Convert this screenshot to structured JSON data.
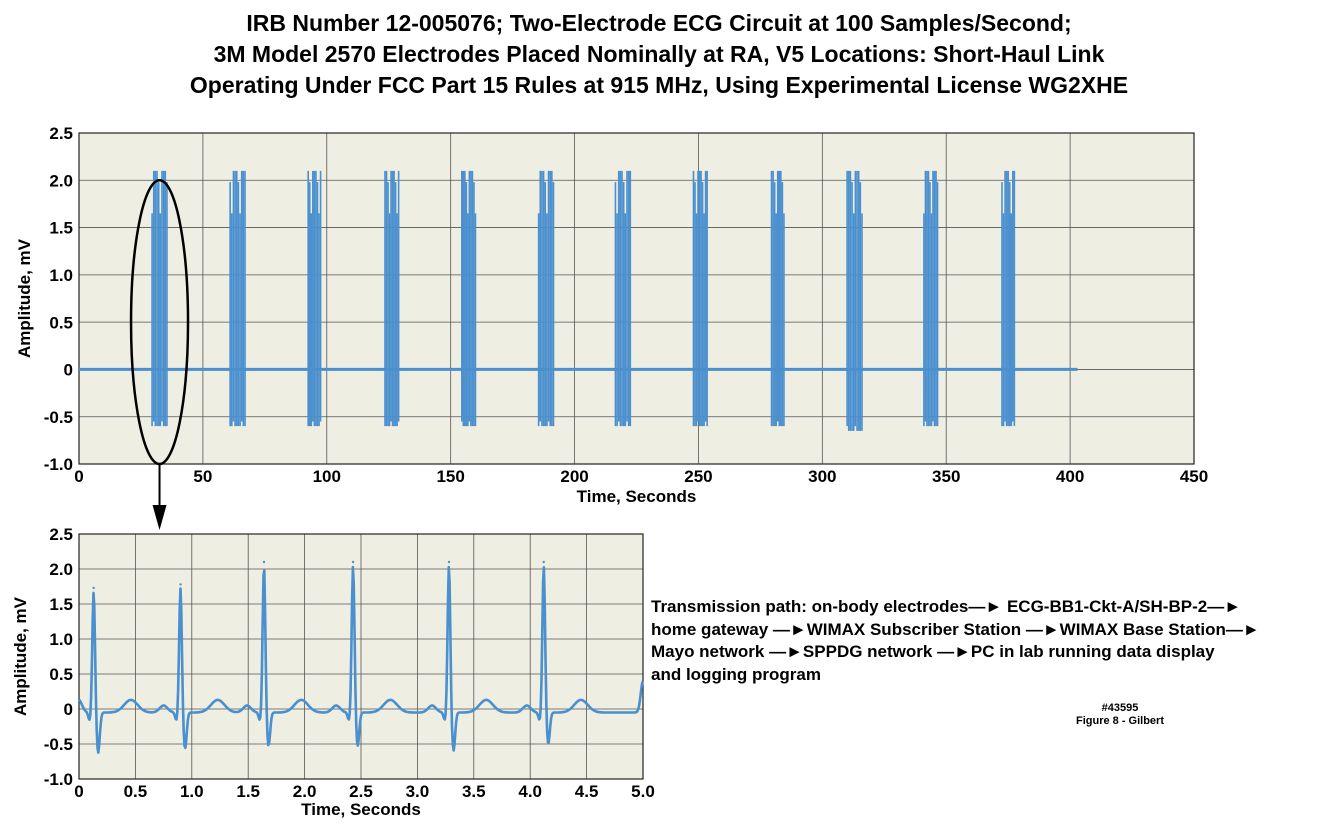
{
  "title_lines": [
    "IRB Number 12-005076;  Two-Electrode  ECG Circuit at 100 Samples/Second;",
    "3M Model 2570 Electrodes Placed Nominally at RA, V5 Locations:  Short-Haul Link",
    "Operating Under FCC Part 15 Rules at 915 MHz, Using Experimental License WG2XHE"
  ],
  "colors": {
    "plot_background": "#efeee2",
    "trace": "#4a8fce",
    "grid": "#555555"
  },
  "chart_data": [
    {
      "type": "line",
      "xlabel": "Time,  Seconds",
      "ylabel": "Amplitude,  mV",
      "xlim": [
        0,
        450
      ],
      "ylim": [
        -1.0,
        2.5
      ],
      "x_ticks": [
        0,
        50,
        100,
        150,
        200,
        250,
        300,
        350,
        400,
        450
      ],
      "x_tick_labels": [
        "0",
        "50",
        "100",
        "150",
        "200",
        "250",
        "300",
        "350",
        "400",
        "450"
      ],
      "y_ticks": [
        -1.0,
        -0.5,
        0,
        0.5,
        1.0,
        1.5,
        2.0,
        2.5
      ],
      "y_tick_labels": [
        "-1.0",
        "-0.5",
        "0",
        "0.5",
        "1.0",
        "1.5",
        "2.0",
        "2.5"
      ],
      "grid": true,
      "baseline": {
        "x": [
          0,
          403
        ],
        "y": 0
      },
      "bursts": [
        {
          "x_start": 29.5,
          "x_end": 35.5,
          "y_min": -0.6,
          "y_max": 2.1
        },
        {
          "x_start": 61.0,
          "x_end": 67.0,
          "y_min": -0.6,
          "y_max": 2.1
        },
        {
          "x_start": 92.5,
          "x_end": 97.5,
          "y_min": -0.6,
          "y_max": 2.1
        },
        {
          "x_start": 123.5,
          "x_end": 129.0,
          "y_min": -0.6,
          "y_max": 2.1
        },
        {
          "x_start": 154.5,
          "x_end": 160.0,
          "y_min": -0.6,
          "y_max": 2.1
        },
        {
          "x_start": 185.5,
          "x_end": 191.5,
          "y_min": -0.6,
          "y_max": 2.1
        },
        {
          "x_start": 216.5,
          "x_end": 222.5,
          "y_min": -0.6,
          "y_max": 2.1
        },
        {
          "x_start": 248.0,
          "x_end": 253.5,
          "y_min": -0.6,
          "y_max": 2.1
        },
        {
          "x_start": 279.5,
          "x_end": 284.5,
          "y_min": -0.6,
          "y_max": 2.1
        },
        {
          "x_start": 310.0,
          "x_end": 316.0,
          "y_min": -0.65,
          "y_max": 2.1
        },
        {
          "x_start": 341.0,
          "x_end": 346.5,
          "y_min": -0.6,
          "y_max": 2.1
        },
        {
          "x_start": 372.5,
          "x_end": 377.5,
          "y_min": -0.6,
          "y_max": 2.1
        }
      ],
      "highlight_ellipse": {
        "center_x": 32.5,
        "center_y": 0.5,
        "half_width_x": 11.5,
        "half_height_y": 1.5
      }
    },
    {
      "type": "line",
      "xlabel": "Time,  Seconds",
      "ylabel": "Amplitude, mV",
      "xlim": [
        0,
        5.0
      ],
      "ylim": [
        -1.0,
        2.5
      ],
      "x_ticks": [
        0,
        0.5,
        1.0,
        1.5,
        2.0,
        2.5,
        3.0,
        3.5,
        4.0,
        4.5,
        5.0
      ],
      "x_tick_labels": [
        "0",
        "0.5",
        "1.0",
        "1.5",
        "2.0",
        "2.5",
        "3.0",
        "3.5",
        "4.0",
        "4.5",
        "5.0"
      ],
      "y_ticks": [
        -1.0,
        -0.5,
        0,
        0.5,
        1.0,
        1.5,
        2.0,
        2.5
      ],
      "y_tick_labels": [
        "-1.0",
        "-0.5",
        "0",
        "0.5",
        "1.0",
        "1.5",
        "2.0",
        "2.5"
      ],
      "grid": true,
      "beats": [
        {
          "r_time": 0.13,
          "r_peak": 1.73,
          "s_min": -0.58
        },
        {
          "r_time": 0.9,
          "r_peak": 1.78,
          "s_min": -0.52
        },
        {
          "r_time": 1.64,
          "r_peak": 2.1,
          "s_min": -0.48
        },
        {
          "r_time": 2.43,
          "r_peak": 2.1,
          "s_min": -0.48
        },
        {
          "r_time": 3.28,
          "r_peak": 2.1,
          "s_min": -0.55
        },
        {
          "r_time": 4.12,
          "r_peak": 2.1,
          "s_min": -0.45
        }
      ],
      "t_wave_offset": 0.33,
      "t_wave_peak": 0.18,
      "p_wave_offset": -0.15,
      "p_wave_peak": 0.1,
      "start_value": 0.1,
      "end_value": 0.45
    }
  ],
  "transmission_note": {
    "lines": [
      [
        "Transmission path:  on-body electrodes",
        "ECG-BB1-Ckt-A/SH-BP-2",
        ""
      ],
      [
        "home gateway ",
        "WIMAX Subscriber Station ",
        "WIMAX Base Station",
        ""
      ],
      [
        "Mayo network ",
        "SPPDG network ",
        "PC in lab running data display"
      ],
      [
        "and logging program"
      ]
    ],
    "arrow_glyph": "—►"
  },
  "figure_ref": {
    "number": "#43595",
    "caption": "Figure 8 - Gilbert"
  }
}
